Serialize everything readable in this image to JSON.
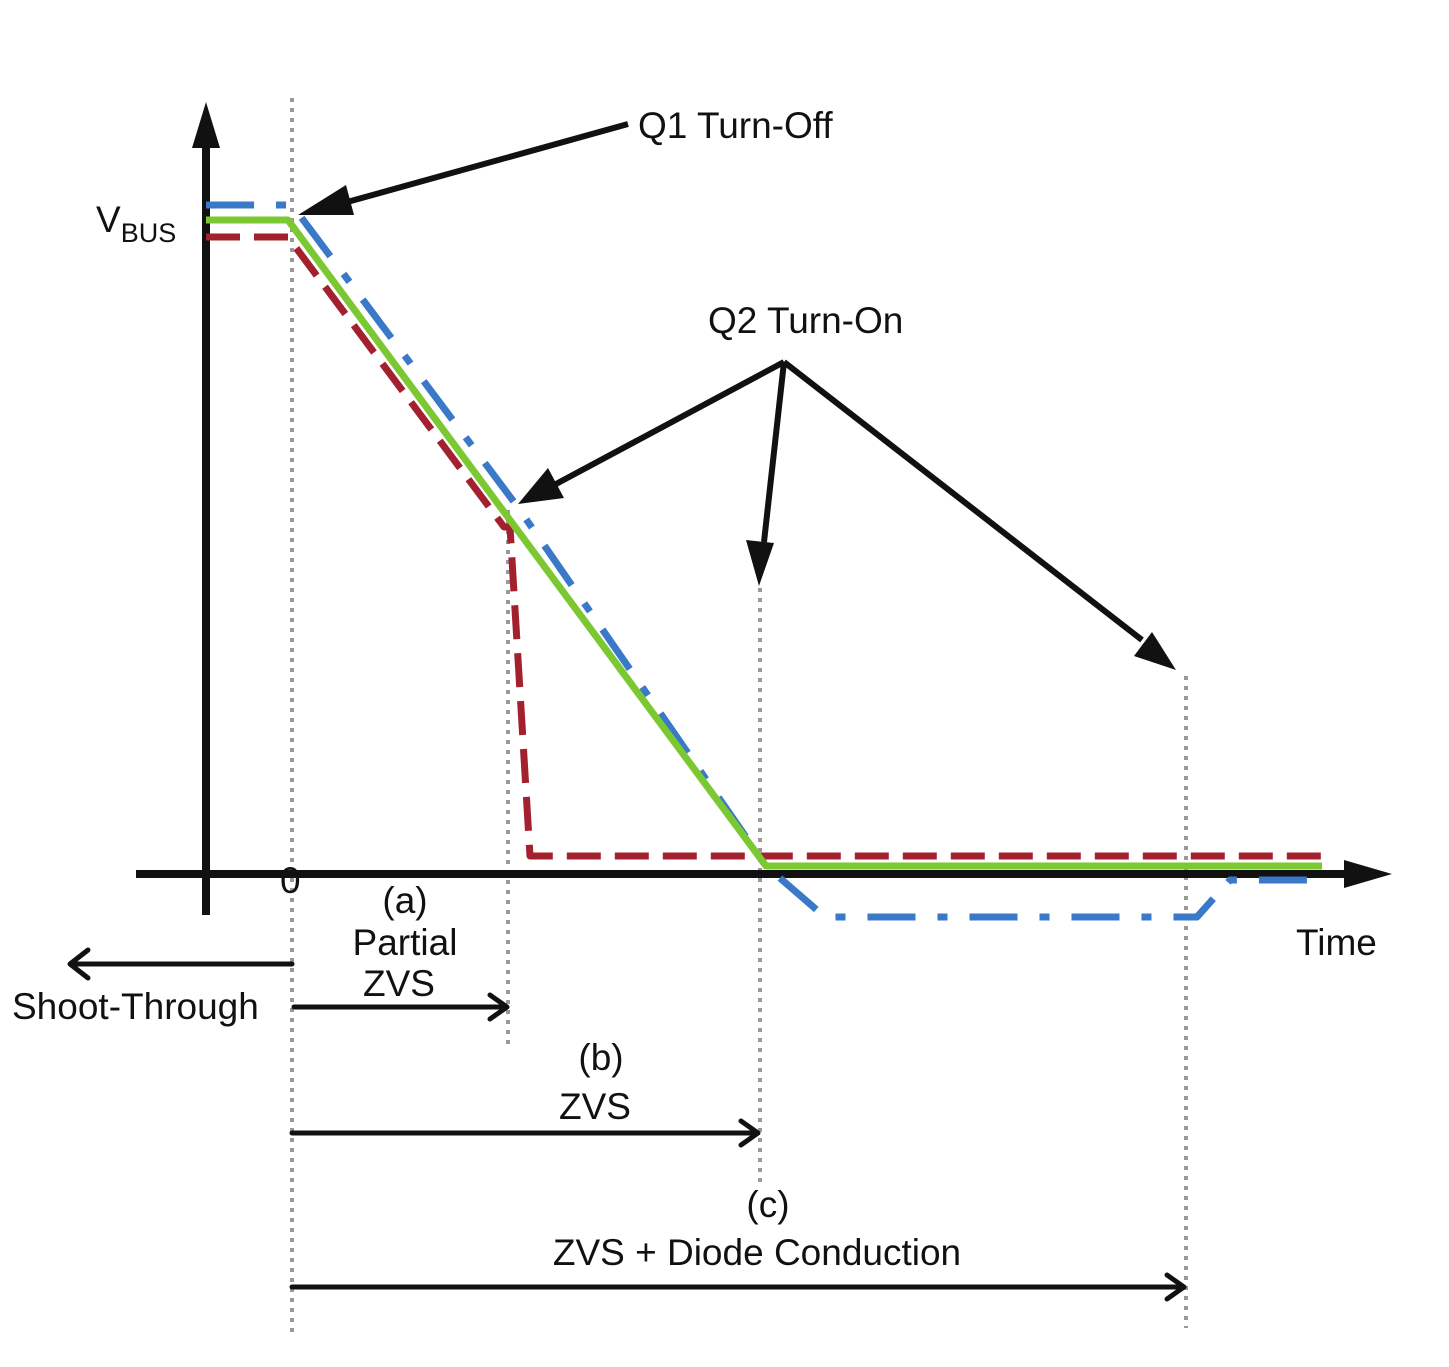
{
  "labels": {
    "q1_turn_off": "Q1 Turn-Off",
    "q2_turn_on": "Q2 Turn-On",
    "vbus_main": "V",
    "vbus_sub": "BUS",
    "origin": "0",
    "time": "Time",
    "shoot_through": "Shoot-Through",
    "case_a": "(a)",
    "case_a_line1": "Partial",
    "case_a_line2": "ZVS",
    "case_b": "(b)",
    "case_b_line1": "ZVS",
    "case_c": "(c)",
    "case_c_line1": "ZVS + Diode Conduction"
  },
  "colors": {
    "axis": "#111111",
    "guide": "#999999",
    "partial_zvs_curve": "#a3202f",
    "zvs_curve": "#7cc832",
    "diode_conduction_curve": "#3a78c8"
  }
}
